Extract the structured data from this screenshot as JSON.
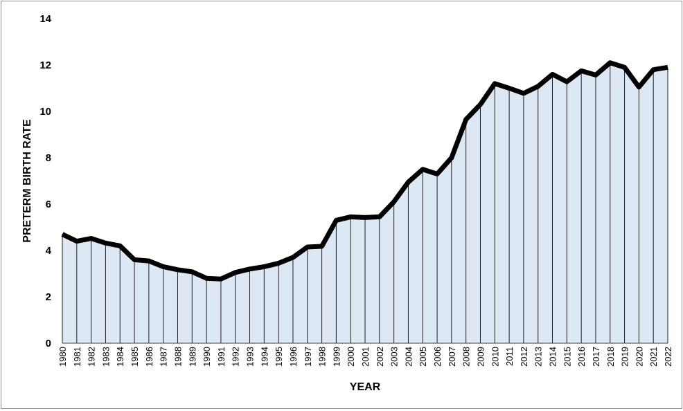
{
  "chart_data": {
    "type": "area",
    "xlabel": "YEAR",
    "ylabel": "PRETERM BIRTH RATE",
    "ylim": [
      0,
      14
    ],
    "yticks": [
      "0",
      "2",
      "4",
      "6",
      "8",
      "10",
      "12",
      "14"
    ],
    "grid": false,
    "x": [
      "1980",
      "1981",
      "1982",
      "1983",
      "1984",
      "1985",
      "1986",
      "1987",
      "1988",
      "1989",
      "1990",
      "1991",
      "1992",
      "1993",
      "1994",
      "1995",
      "1996",
      "1997",
      "1998",
      "1999",
      "2000",
      "2001",
      "2002",
      "2003",
      "2004",
      "2005",
      "2006",
      "2007",
      "2008",
      "2009",
      "2010",
      "2011",
      "2012",
      "2013",
      "2014",
      "2015",
      "2016",
      "2017",
      "2018",
      "2019",
      "2020",
      "2021",
      "2022"
    ],
    "series": [
      {
        "values": [
          4.7,
          4.4,
          4.52,
          4.32,
          4.2,
          3.6,
          3.55,
          3.3,
          3.17,
          3.08,
          2.8,
          2.77,
          3.05,
          3.2,
          3.3,
          3.45,
          3.7,
          4.15,
          4.18,
          5.3,
          5.45,
          5.42,
          5.45,
          6.1,
          6.95,
          7.5,
          7.3,
          8.0,
          9.65,
          10.3,
          11.2,
          11.0,
          10.78,
          11.08,
          11.6,
          11.28,
          11.75,
          11.57,
          12.1,
          11.9,
          11.05,
          11.8,
          11.9
        ]
      }
    ],
    "colors": {
      "area": "#dee8f4",
      "line": "#000000",
      "drops": "#1c1c1c"
    }
  }
}
